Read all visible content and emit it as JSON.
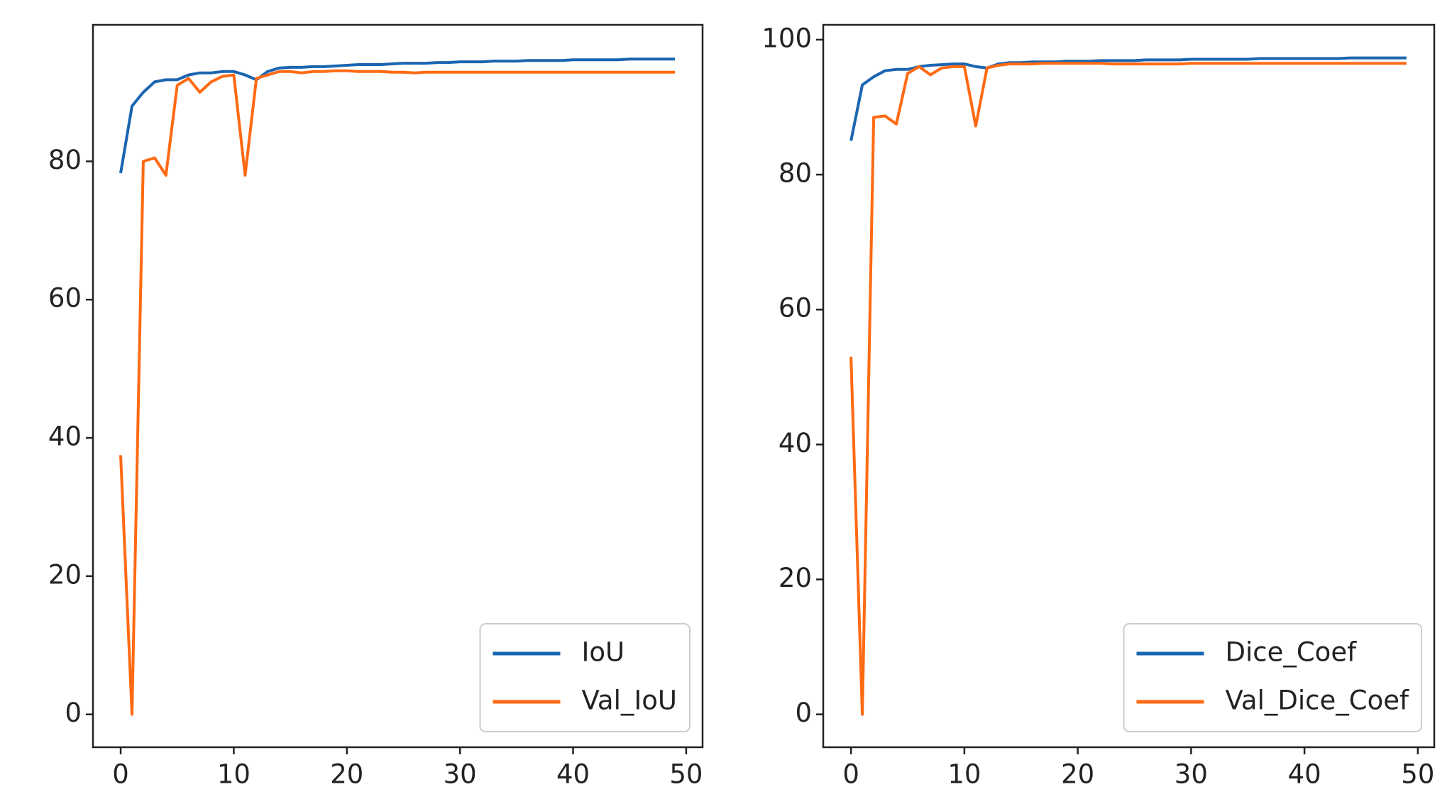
{
  "chart_data": [
    {
      "type": "line",
      "legend": "lower right",
      "x": [
        0,
        1,
        2,
        3,
        4,
        5,
        6,
        7,
        8,
        9,
        10,
        11,
        12,
        13,
        14,
        15,
        16,
        17,
        18,
        19,
        20,
        21,
        22,
        23,
        24,
        25,
        26,
        27,
        28,
        29,
        30,
        31,
        32,
        33,
        34,
        35,
        36,
        37,
        38,
        39,
        40,
        41,
        42,
        43,
        44,
        45,
        46,
        47,
        48,
        49
      ],
      "series": [
        {
          "name": "IoU",
          "color": "#1a65b0",
          "values": [
            78.3,
            88.0,
            90.0,
            91.5,
            91.8,
            91.8,
            92.5,
            92.8,
            92.8,
            93.0,
            93.0,
            92.5,
            91.8,
            93.0,
            93.5,
            93.6,
            93.6,
            93.7,
            93.7,
            93.8,
            93.9,
            94.0,
            94.0,
            94.0,
            94.1,
            94.2,
            94.2,
            94.2,
            94.3,
            94.3,
            94.4,
            94.4,
            94.4,
            94.5,
            94.5,
            94.5,
            94.6,
            94.6,
            94.6,
            94.6,
            94.7,
            94.7,
            94.7,
            94.7,
            94.7,
            94.8,
            94.8,
            94.8,
            94.8,
            94.8
          ]
        },
        {
          "name": "Val_IoU",
          "color": "#ff6a13",
          "values": [
            37.5,
            0,
            80.0,
            80.5,
            78.0,
            91.0,
            92.0,
            90.0,
            91.5,
            92.3,
            92.5,
            78.0,
            92.0,
            92.5,
            93.0,
            93.0,
            92.8,
            93.0,
            93.0,
            93.1,
            93.1,
            93.0,
            93.0,
            93.0,
            92.9,
            92.9,
            92.8,
            92.9,
            92.9,
            92.9,
            92.9,
            92.9,
            92.9,
            92.9,
            92.9,
            92.9,
            92.9,
            92.9,
            92.9,
            92.9,
            92.9,
            92.9,
            92.9,
            92.9,
            92.9,
            92.9,
            92.9,
            92.9,
            92.9,
            92.9
          ]
        }
      ],
      "xlim": [
        -2.45,
        51.45
      ],
      "xticks": [
        0,
        10,
        20,
        30,
        40,
        50
      ],
      "ylim": [
        -4.75,
        99.75
      ],
      "yticks": [
        0,
        20,
        40,
        60,
        80
      ]
    },
    {
      "type": "line",
      "legend": "lower right",
      "x": [
        0,
        1,
        2,
        3,
        4,
        5,
        6,
        7,
        8,
        9,
        10,
        11,
        12,
        13,
        14,
        15,
        16,
        17,
        18,
        19,
        20,
        21,
        22,
        23,
        24,
        25,
        26,
        27,
        28,
        29,
        30,
        31,
        32,
        33,
        34,
        35,
        36,
        37,
        38,
        39,
        40,
        41,
        42,
        43,
        44,
        45,
        46,
        47,
        48,
        49
      ],
      "series": [
        {
          "name": "Dice_Coef",
          "color": "#1a65b0",
          "values": [
            85.0,
            93.3,
            94.5,
            95.4,
            95.6,
            95.6,
            96.0,
            96.2,
            96.3,
            96.4,
            96.4,
            96.0,
            95.8,
            96.4,
            96.6,
            96.6,
            96.7,
            96.7,
            96.7,
            96.8,
            96.8,
            96.8,
            96.9,
            96.9,
            96.9,
            96.9,
            97.0,
            97.0,
            97.0,
            97.0,
            97.1,
            97.1,
            97.1,
            97.1,
            97.1,
            97.1,
            97.2,
            97.2,
            97.2,
            97.2,
            97.2,
            97.2,
            97.2,
            97.2,
            97.3,
            97.3,
            97.3,
            97.3,
            97.3,
            97.3
          ]
        },
        {
          "name": "Val_Dice_Coef",
          "color": "#ff6a13",
          "values": [
            53.0,
            0,
            88.5,
            88.7,
            87.5,
            95.0,
            96.0,
            94.8,
            95.8,
            96.0,
            96.0,
            87.2,
            95.8,
            96.2,
            96.4,
            96.4,
            96.4,
            96.5,
            96.5,
            96.5,
            96.5,
            96.5,
            96.5,
            96.4,
            96.4,
            96.4,
            96.4,
            96.4,
            96.4,
            96.4,
            96.5,
            96.5,
            96.5,
            96.5,
            96.5,
            96.5,
            96.5,
            96.5,
            96.5,
            96.5,
            96.5,
            96.5,
            96.5,
            96.5,
            96.5,
            96.5,
            96.5,
            96.5,
            96.5,
            96.5
          ]
        }
      ],
      "xlim": [
        -2.45,
        51.45
      ],
      "xticks": [
        0,
        10,
        20,
        30,
        40,
        50
      ],
      "ylim": [
        -4.87,
        102.2
      ],
      "yticks": [
        0,
        20,
        40,
        60,
        80,
        100
      ]
    }
  ]
}
